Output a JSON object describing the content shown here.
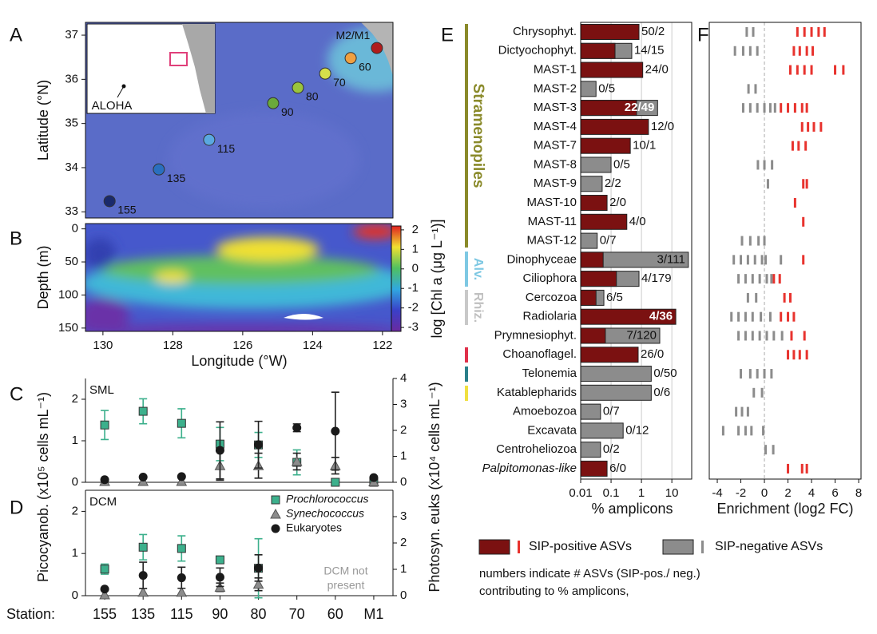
{
  "chart_data": [
    {
      "type": "map",
      "label": "A",
      "ylabel": "Latitude (°N)",
      "ylim": [
        32.86,
        37.29
      ],
      "yticks": [
        33,
        34,
        35,
        36,
        37
      ],
      "xlim": [
        130.5,
        121.7
      ],
      "inset_label": "ALOHA",
      "points": {
        "names": [
          "155",
          "135",
          "115",
          "90",
          "80",
          "70",
          "60",
          "M2/M1"
        ],
        "x": [
          129.81,
          128.4,
          126.96,
          125.13,
          124.42,
          123.64,
          122.91,
          122.16
        ],
        "y": [
          33.24,
          33.96,
          34.63,
          35.46,
          35.81,
          36.13,
          36.48,
          36.71
        ],
        "colors": [
          "#1a2a6c",
          "#2a6fbf",
          "#5aa8e0",
          "#6aaa3a",
          "#9ac43c",
          "#d6e04a",
          "#f0a040",
          "#b01c1c"
        ]
      }
    },
    {
      "type": "heatmap",
      "label": "B",
      "ylabel": "Depth (m)",
      "ylim": [
        -8,
        155
      ],
      "yticks": [
        0,
        50,
        100,
        150
      ],
      "xlim": [
        130.5,
        121.7
      ],
      "xticks": [
        130,
        128,
        126,
        124,
        122
      ],
      "xlabel": "Longitude (°W)",
      "colorbar": {
        "label": "log [Chl a (μg L⁻¹)]",
        "lim": [
          -3.2,
          2.2
        ],
        "ticks": [
          -3,
          -2,
          -1,
          0,
          1,
          2
        ]
      }
    },
    {
      "type": "dotplot",
      "label": "C",
      "panel_title": "SML",
      "ylim": [
        0,
        2.5
      ],
      "yticks": [
        0,
        1,
        2
      ],
      "y2lim": [
        0,
        4
      ],
      "y2ticks": [
        0,
        1,
        2,
        3,
        4
      ],
      "ylabel": "Picocyanob. (x10⁵ cells mL⁻¹)",
      "y2label": "Photosyn. euks (x10⁴ cells mL⁻¹)",
      "series": [
        {
          "color": "#3cb08c",
          "marker": "square",
          "values": [
            1.38,
            1.71,
            1.42,
            0.92,
            0.9,
            0.48,
            0,
            0
          ],
          "errors": [
            0.35,
            0.3,
            0.35,
            0.4,
            0.3,
            0.3,
            null,
            null
          ]
        },
        {
          "color": "#8c8c8c",
          "marker": "triangle",
          "values": [
            0.02,
            0.02,
            0.02,
            0.4,
            0.4,
            0.5,
            0.4,
            0.01
          ],
          "errors": [
            null,
            null,
            null,
            0.35,
            0.3,
            0.2,
            0.2,
            null
          ]
        },
        {
          "color": "#1a1a1a",
          "marker": "circle",
          "axis": "y2",
          "values": [
            0.1,
            0.2,
            0.22,
            1.23,
            1.45,
            2.1,
            1.97,
            0.18
          ],
          "errors": [
            null,
            null,
            null,
            1.1,
            0.9,
            0.15,
            1.5,
            null
          ]
        }
      ]
    },
    {
      "type": "dotplot",
      "label": "D",
      "panel_title": "DCM",
      "xlabel": "Station:",
      "categories": [
        "155",
        "135",
        "115",
        "90",
        "80",
        "70",
        "60",
        "M1"
      ],
      "ylim": [
        0,
        2.5
      ],
      "yticks": [
        0,
        1,
        2
      ],
      "y2lim": [
        0,
        4
      ],
      "y2ticks": [
        0,
        1,
        2,
        3
      ],
      "annotation": [
        "DCM not",
        "present"
      ],
      "series": [
        {
          "name": "Prochlorococcus",
          "color": "#3cb08c",
          "marker": "square",
          "values": [
            0.63,
            1.15,
            1.12,
            0.85,
            0.65,
            null,
            null,
            null
          ],
          "errors": [
            0.12,
            0.3,
            0.3,
            null,
            0.7,
            null,
            null,
            null
          ]
        },
        {
          "name": "Synechococcus",
          "color": "#8c8c8c",
          "marker": "triangle",
          "values": [
            0.02,
            0.08,
            0.08,
            0.2,
            0.27,
            null,
            null,
            null
          ],
          "errors": [
            null,
            null,
            null,
            0.1,
            0.15,
            null,
            null,
            null
          ]
        },
        {
          "name": "Eukaryotes",
          "color": "#1a1a1a",
          "marker": "circle",
          "axis": "y2",
          "values": [
            0.25,
            0.77,
            0.68,
            0.7,
            1.05,
            null,
            null,
            null
          ],
          "errors": [
            null,
            0.5,
            0.4,
            0.35,
            0.5,
            null,
            null,
            null
          ]
        }
      ]
    },
    {
      "type": "logbar",
      "label": "E",
      "xlabel": "% amplicons",
      "log_x": true,
      "xlim": [
        0.01,
        45
      ],
      "xticks": [
        0.01,
        0.1,
        1,
        10
      ],
      "grid": true,
      "groups": [
        "Stramenopiles",
        "Alv.",
        "Rhiz."
      ],
      "categories": [
        "Chrysophyt.",
        "Dictyochophyt.",
        "MAST-1",
        "MAST-2",
        "MAST-3",
        "MAST-4",
        "MAST-7",
        "MAST-8",
        "MAST-9",
        "MAST-10",
        "MAST-11",
        "MAST-12",
        "Dinophyceae",
        "Ciliophora",
        "Cercozoa",
        "Radiolaria",
        "Prymnesiophyt.",
        "Choanoflagel.",
        "Telonemia",
        "Katablepharids",
        "Amoebozoa",
        "Excavata",
        "Centroheliozoa",
        "Palpitomonas-like"
      ],
      "bar_labels": [
        "50/2",
        "14/15",
        "24/0",
        "0/5",
        "22/49",
        "12/0",
        "10/1",
        "0/5",
        "2/2",
        "2/0",
        "4/0",
        "0/7",
        "3/111",
        "4/179",
        "6/5",
        "4/36",
        "7/120",
        "26/0",
        "0/50",
        "0/6",
        "0/7",
        "0/12",
        "0/2",
        "6/0"
      ],
      "series": [
        {
          "name": "SIP-positive ASVs",
          "color": "#7b1111",
          "values": [
            0.83,
            0.135,
            1.1,
            null,
            0.69,
            1.7,
            0.43,
            null,
            null,
            0.074,
            0.33,
            null,
            0.055,
            0.15,
            0.032,
            13.5,
            0.065,
            0.78,
            null,
            null,
            null,
            null,
            null,
            0.074
          ]
        },
        {
          "name": "SIP-negative ASVs",
          "color": "#8c8c8c",
          "values": [
            null,
            0.48,
            null,
            0.032,
            3.4,
            null,
            null,
            0.1,
            0.051,
            null,
            null,
            0.035,
            35,
            0.83,
            0.058,
            null,
            4,
            null,
            2.1,
            2.1,
            0.045,
            0.25,
            0.045,
            null
          ]
        }
      ],
      "note": [
        "numbers indicate # ASVs (SIP-pos./ neg.)",
        "contributing to % amplicons,"
      ]
    },
    {
      "type": "stripplot",
      "label": "F",
      "xlabel": "Enrichment (log2 FC)",
      "xlim": [
        -4.68,
        8.2
      ],
      "xticks": [
        -4,
        -2,
        0,
        2,
        4,
        6,
        8
      ],
      "series": [
        {
          "color": "#e8332e",
          "values": [
            [
              2.8,
              3.4,
              4,
              4.6,
              5.1
            ],
            [
              2.5,
              3,
              3.6,
              4.1
            ],
            [
              2.2,
              2.8,
              3.4,
              4.0,
              6.0,
              6.7
            ],
            [],
            [
              1.4,
              2,
              2.6,
              3.2,
              3.6
            ],
            [
              3.2,
              3.7,
              4.2,
              4.8
            ],
            [
              2.4,
              2.9,
              3.5
            ],
            [],
            [
              3.3,
              3.6
            ],
            [
              2.6
            ],
            [
              3.3
            ],
            [],
            [
              3.3
            ],
            [
              0.8,
              1.3
            ],
            [
              1.7,
              2.2
            ],
            [
              1.4,
              2.0,
              2.5
            ],
            [
              2.3,
              3.4
            ],
            [
              2,
              2.5,
              3,
              3.6
            ],
            [],
            [],
            [],
            [],
            [],
            [
              2,
              3.2,
              3.6
            ]
          ]
        },
        {
          "color": "#8c8c8c",
          "values": [
            [
              -1.5,
              -0.95
            ],
            [
              -2.5,
              -1.8,
              -1.2,
              -0.6
            ],
            [],
            [
              -1.35,
              -0.75
            ],
            [
              -1.8,
              -1.2,
              -0.6,
              0,
              0.5,
              0.9
            ],
            [],
            [],
            [
              -0.55,
              0,
              0.65
            ],
            [
              0.3
            ],
            [],
            [],
            [
              -1.9,
              -1.2,
              -0.5,
              0
            ],
            [
              -2.6,
              -2,
              -1.4,
              -0.8,
              -0.2,
              0.1,
              1.4
            ],
            [
              -2.2,
              -1.6,
              -1,
              -0.4,
              0.2,
              0.6
            ],
            [
              -1.4,
              -0.7
            ],
            [
              -2.8,
              -2.2,
              -1.6,
              -1,
              -0.3,
              0.5
            ],
            [
              -2.2,
              -1.6,
              -1,
              -0.4,
              0.2,
              0.8,
              1.5
            ],
            [],
            [
              -2,
              -1.2,
              -0.6,
              0,
              0.6
            ],
            [
              -0.9,
              -0.2
            ],
            [
              -2.4,
              -1.9,
              -1.4
            ],
            [
              -3.5,
              -2.2,
              -1.6,
              -1.1,
              -0.1
            ],
            [
              0.1,
              0.75
            ],
            []
          ]
        }
      ]
    }
  ]
}
